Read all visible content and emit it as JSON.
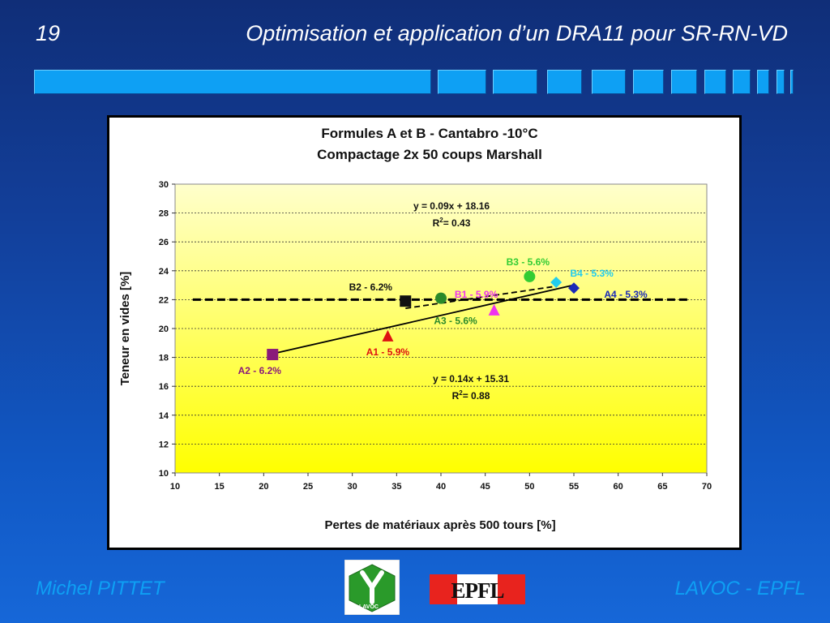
{
  "slide": {
    "number": "19",
    "title": "Optimisation et application d’un DRA11 pour SR-RN-VD"
  },
  "footer": {
    "author": "Michel PITTET",
    "org": "LAVOC - EPFL"
  },
  "logos": {
    "lavoc_text": "LAVOC",
    "epfl_text": "EPFL"
  },
  "colors": {
    "accent": "#0ea0f4",
    "plot_top": "#ffffcc",
    "plot_bottom": "#ffff00"
  },
  "chart_data": {
    "type": "scatter",
    "title": "Formules A et B - Cantabro -10°C",
    "subtitle": "Compactage 2x 50 coups Marshall",
    "xlabel": "Pertes de matériaux après 500 tours  [%]",
    "ylabel": "Teneur en vides  [%]",
    "xlim": [
      10,
      70
    ],
    "ylim": [
      10,
      30
    ],
    "xticks": [
      10,
      15,
      20,
      25,
      30,
      35,
      40,
      45,
      50,
      55,
      60,
      65,
      70
    ],
    "yticks": [
      10,
      12,
      14,
      16,
      18,
      20,
      22,
      24,
      26,
      28,
      30
    ],
    "grid": "horizontal dotted",
    "points": [
      {
        "label": "A1 - 5.9%",
        "x": 34,
        "y": 19.5,
        "marker": "triangle",
        "color": "#dd1111"
      },
      {
        "label": "A2 - 6.2%",
        "x": 21,
        "y": 18.2,
        "marker": "square",
        "color": "#8a1a7a"
      },
      {
        "label": "A3 - 5.6%",
        "x": 40,
        "y": 22.1,
        "marker": "circle",
        "color": "#2a8a2a"
      },
      {
        "label": "A4 - 5.3%",
        "x": 55,
        "y": 22.8,
        "marker": "diamond",
        "color": "#1a2ab8"
      },
      {
        "label": "B1 - 5.9%",
        "x": 46,
        "y": 21.3,
        "marker": "triangle",
        "color": "#ee33ee"
      },
      {
        "label": "B2 - 6.2%",
        "x": 36,
        "y": 21.9,
        "marker": "square",
        "color": "#111111"
      },
      {
        "label": "B3 - 5.6%",
        "x": 50,
        "y": 23.6,
        "marker": "circle",
        "color": "#33cc33"
      },
      {
        "label": "B4 - 5.3%",
        "x": 53,
        "y": 23.2,
        "marker": "diamond",
        "color": "#22ccee"
      }
    ],
    "trendlines": [
      {
        "equation": "y = 0.14x + 15.31",
        "r2_label": "R",
        "r2_value": "= 0.88",
        "slope": 0.14,
        "intercept": 15.31,
        "x_range": [
          21,
          55
        ],
        "style": "solid"
      },
      {
        "equation": "y = 0.09x + 18.16",
        "r2_label": "R",
        "r2_value": "= 0.43",
        "slope": 0.09,
        "intercept": 18.16,
        "x_range": [
          36,
          53
        ],
        "style": "dashed"
      }
    ],
    "reference_line": {
      "y": 22,
      "x_range": [
        12,
        68
      ],
      "style": "dashed"
    }
  }
}
